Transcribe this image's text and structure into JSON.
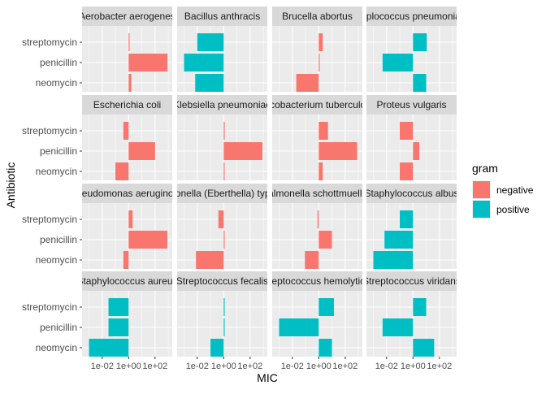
{
  "chart_data": {
    "type": "bar",
    "orientation": "horizontal",
    "facet_layout": "4x4",
    "xlabel": "MIC",
    "ylabel": "Antibiotic",
    "x_scale": "log10",
    "x_tick_labels": [
      "1e-02",
      "1e+00",
      "1e+02"
    ],
    "x_tick_values": [
      0.01,
      1,
      100
    ],
    "xlim": [
      0.0003,
      2000
    ],
    "categories": [
      "streptomycin",
      "penicillin",
      "neomycin"
    ],
    "grid": true,
    "legend": {
      "title": "gram",
      "placement": "right",
      "entries": [
        {
          "label": "negative",
          "color": "#F8766D"
        },
        {
          "label": "positive",
          "color": "#00BFC4"
        }
      ]
    },
    "panels": [
      {
        "title": "Aerobacter aerogenes",
        "gram": "negative",
        "values": {
          "streptomycin": 1,
          "penicillin": 870,
          "neomycin": 1.6
        }
      },
      {
        "title": "Bacillus anthracis",
        "gram": "positive",
        "values": {
          "streptomycin": 0.01,
          "penicillin": 0.001,
          "neomycin": 0.007
        }
      },
      {
        "title": "Brucella abortus",
        "gram": "negative",
        "values": {
          "streptomycin": 2,
          "penicillin": 1,
          "neomycin": 0.02
        }
      },
      {
        "title": "Diplococcus pneumoniae",
        "gram": "positive",
        "values": {
          "streptomycin": 11,
          "penicillin": 0.005,
          "neomycin": 10
        }
      },
      {
        "title": "Escherichia coli",
        "gram": "negative",
        "values": {
          "streptomycin": 0.4,
          "penicillin": 100,
          "neomycin": 0.1
        }
      },
      {
        "title": "Klebsiella pneumoniae",
        "gram": "negative",
        "values": {
          "streptomycin": 1.2,
          "penicillin": 850,
          "neomycin": 1
        }
      },
      {
        "title": "Mycobacterium tuberculosis",
        "gram": "negative",
        "values": {
          "streptomycin": 5,
          "penicillin": 800,
          "neomycin": 2
        }
      },
      {
        "title": "Proteus vulgaris",
        "gram": "negative",
        "values": {
          "streptomycin": 0.1,
          "penicillin": 3,
          "neomycin": 0.1
        }
      },
      {
        "title": "Pseudomonas aeruginosa",
        "gram": "negative",
        "values": {
          "streptomycin": 2,
          "penicillin": 850,
          "neomycin": 0.4
        }
      },
      {
        "title": "Salmonella (Eberthella) typhosa",
        "gram": "negative",
        "values": {
          "streptomycin": 0.4,
          "penicillin": 1,
          "neomycin": 0.008
        }
      },
      {
        "title": "Salmonella schottmuelleri",
        "gram": "negative",
        "values": {
          "streptomycin": 0.8,
          "penicillin": 10,
          "neomycin": 0.09
        }
      },
      {
        "title": "Staphylococcus albus",
        "gram": "positive",
        "values": {
          "streptomycin": 0.1,
          "penicillin": 0.007,
          "neomycin": 0.001
        }
      },
      {
        "title": "Staphylococcus aureus",
        "gram": "positive",
        "values": {
          "streptomycin": 0.03,
          "penicillin": 0.03,
          "neomycin": 0.001
        }
      },
      {
        "title": "Streptococcus fecalis",
        "gram": "positive",
        "values": {
          "streptomycin": 1,
          "penicillin": 1,
          "neomycin": 0.1
        }
      },
      {
        "title": "Streptococcus hemolyticus",
        "gram": "positive",
        "values": {
          "streptomycin": 14,
          "penicillin": 0.001,
          "neomycin": 10
        }
      },
      {
        "title": "Streptococcus viridans",
        "gram": "positive",
        "values": {
          "streptomycin": 10,
          "penicillin": 0.005,
          "neomycin": 40
        }
      }
    ]
  }
}
